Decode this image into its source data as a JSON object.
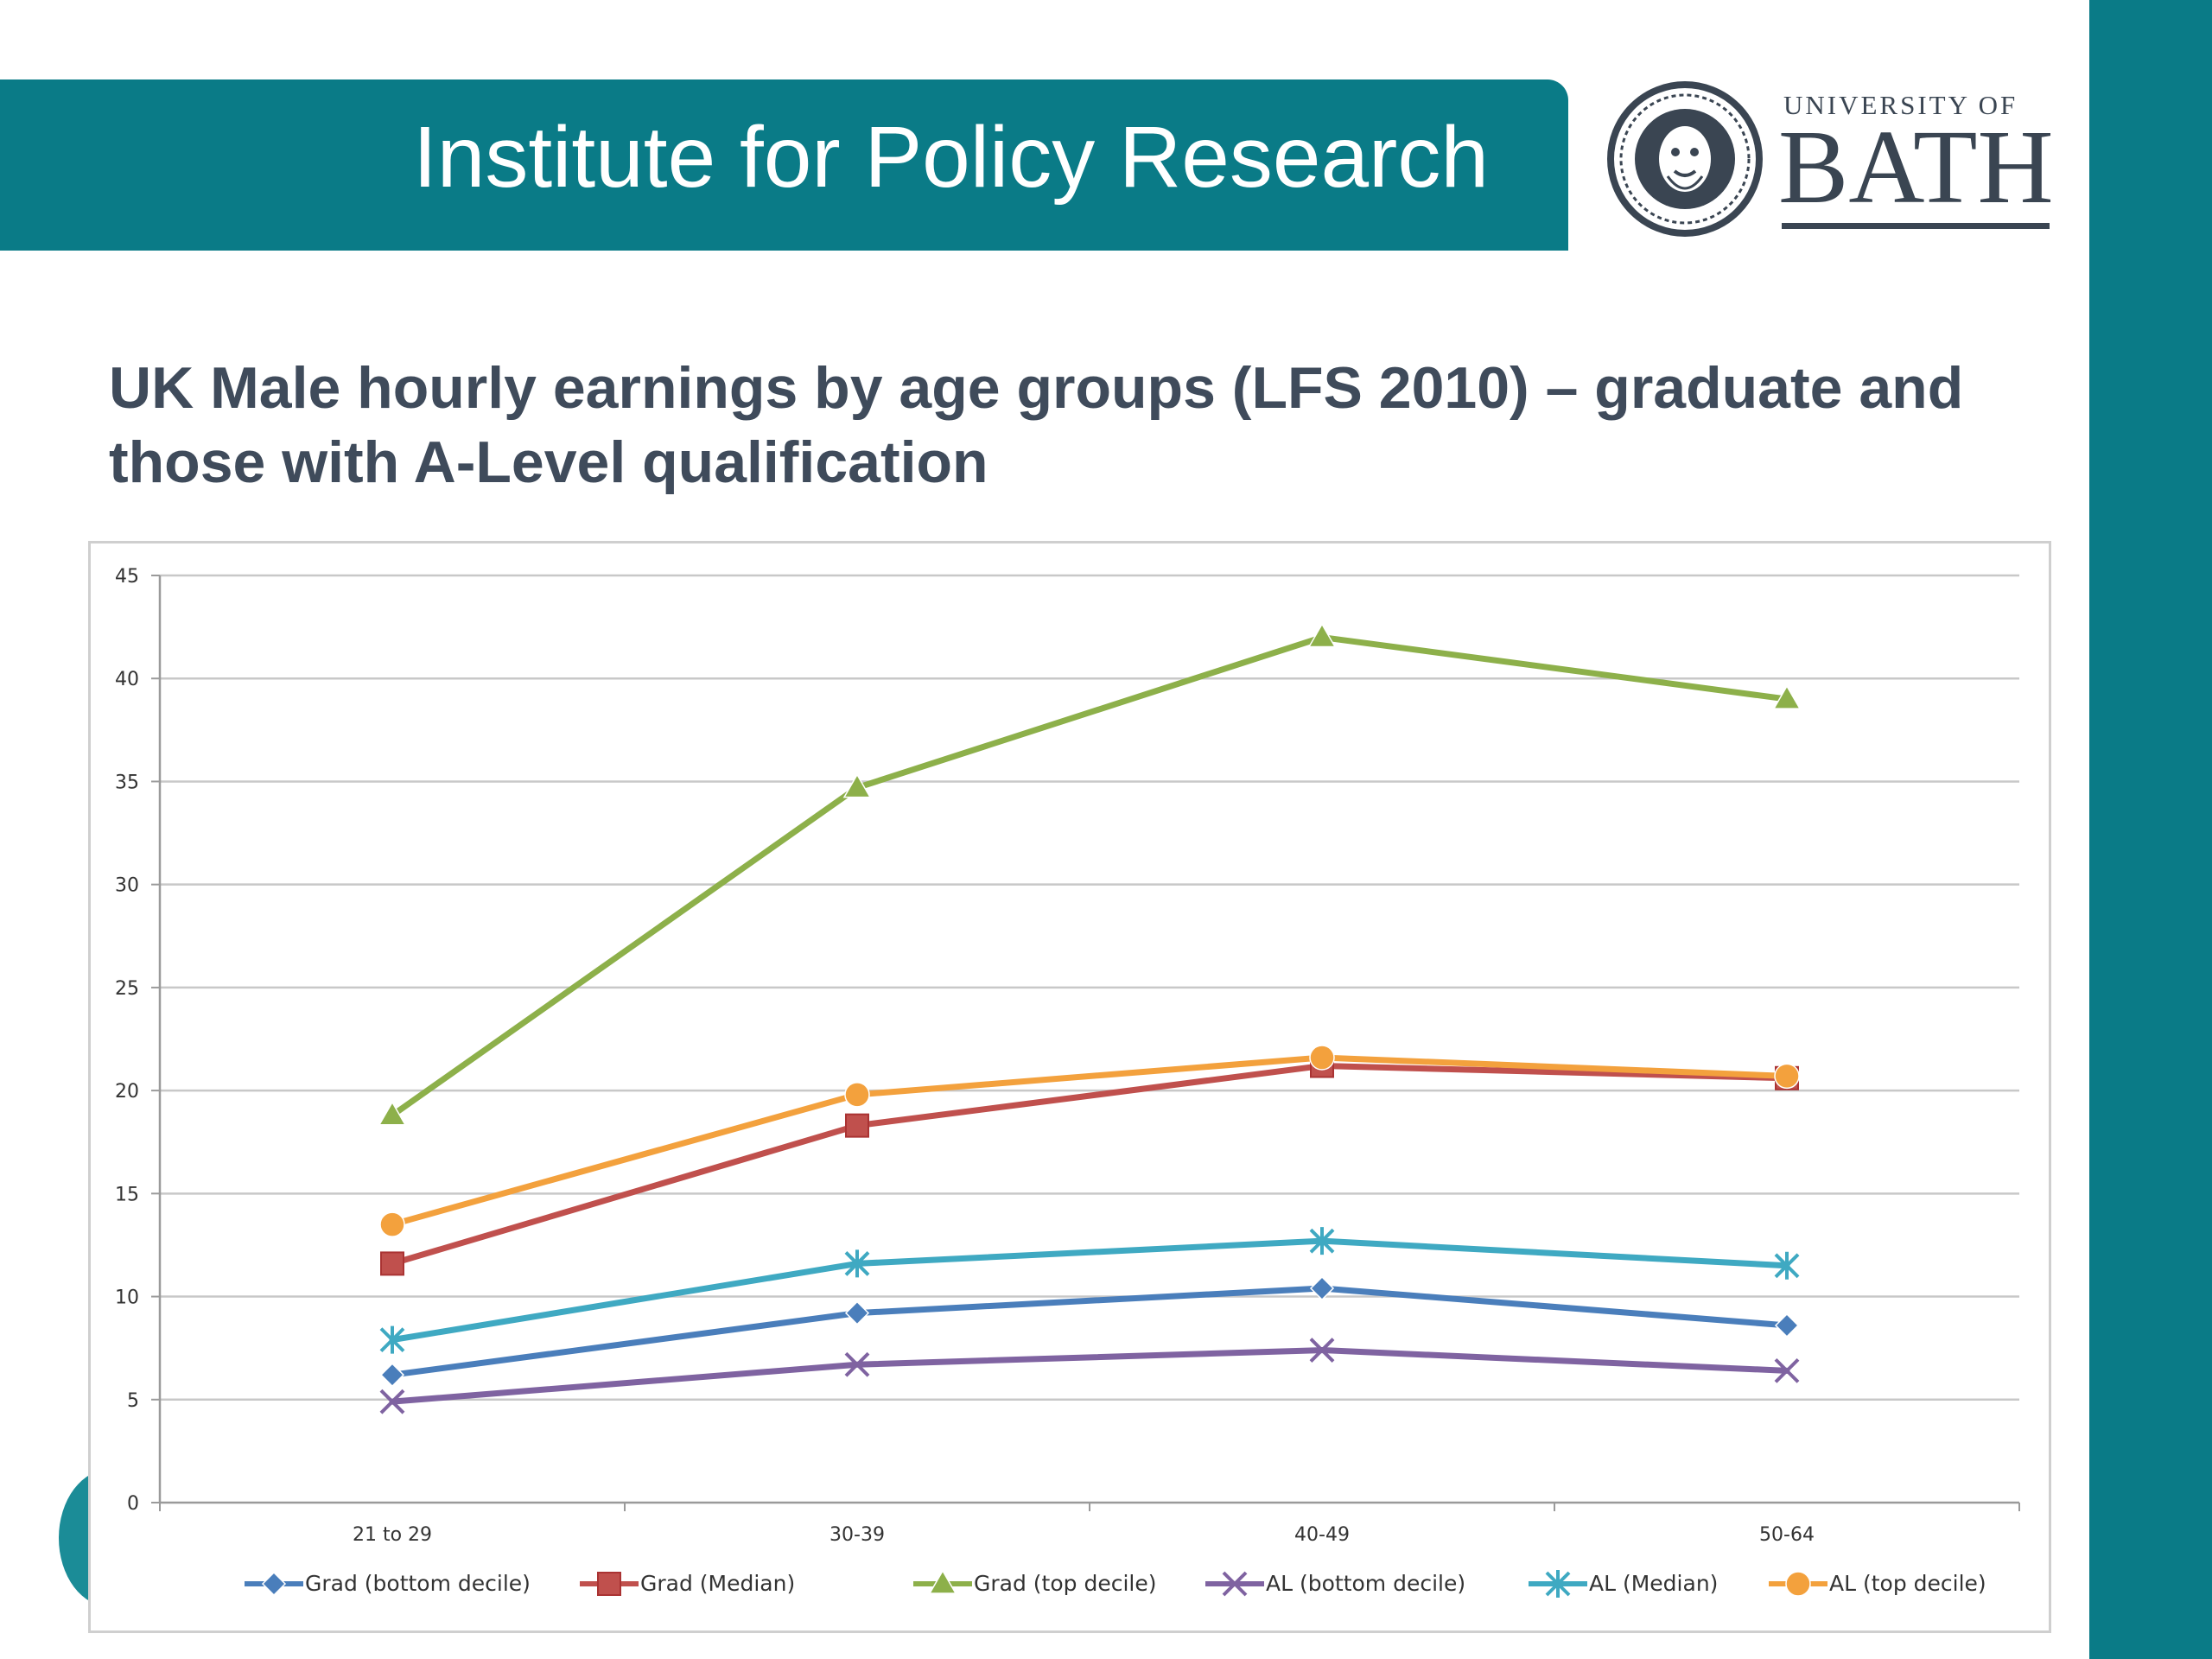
{
  "header": {
    "title": "Institute for Policy Research",
    "band_color": "#0a7b87"
  },
  "logo": {
    "line1": "UNIVERSITY OF",
    "line2": "BATH",
    "icon": "bath-university-seal-icon"
  },
  "slide": {
    "title": "UK Male hourly earnings by age groups (LFS 2010) – graduate and those with A-Level qualification"
  },
  "chart_data": {
    "type": "line",
    "title": "",
    "xlabel": "",
    "ylabel": "",
    "categories": [
      "21 to 29",
      "30-39",
      "40-49",
      "50-64"
    ],
    "ylim": [
      0,
      45
    ],
    "yticks": [
      0,
      5,
      10,
      15,
      20,
      25,
      30,
      35,
      40,
      45
    ],
    "grid": true,
    "legend_position": "bottom",
    "series": [
      {
        "name": "Grad (bottom decile)",
        "values": [
          6.2,
          9.2,
          10.4,
          8.6
        ],
        "color": "#4a7ebb",
        "marker": "diamond"
      },
      {
        "name": "Grad (Median)",
        "values": [
          11.6,
          18.3,
          21.2,
          20.6
        ],
        "color": "#c0504d",
        "marker": "square"
      },
      {
        "name": "Grad (top decile)",
        "values": [
          18.8,
          34.7,
          42.0,
          39.0
        ],
        "color": "#8db04a",
        "marker": "triangle"
      },
      {
        "name": "AL (bottom decile)",
        "values": [
          4.9,
          6.7,
          7.4,
          6.4
        ],
        "color": "#7f63a1",
        "marker": "x"
      },
      {
        "name": "AL (Median)",
        "values": [
          7.9,
          11.6,
          12.7,
          11.5
        ],
        "color": "#3fa9c2",
        "marker": "star"
      },
      {
        "name": "AL (top decile)",
        "values": [
          13.5,
          19.8,
          21.6,
          20.7
        ],
        "color": "#f3a13d",
        "marker": "circle"
      }
    ]
  }
}
